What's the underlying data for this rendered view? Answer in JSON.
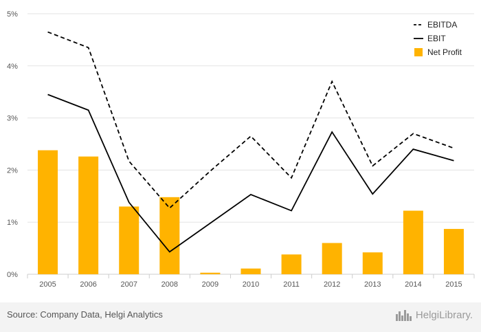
{
  "chart_data": {
    "type": "bar",
    "categories": [
      "2005",
      "2006",
      "2007",
      "2008",
      "2009",
      "2010",
      "2011",
      "2012",
      "2013",
      "2014",
      "2015"
    ],
    "series": [
      {
        "name": "EBITDA",
        "type": "line",
        "style": "dashed",
        "color": "#000000",
        "values": [
          4.65,
          4.35,
          2.17,
          1.27,
          1.98,
          2.65,
          1.85,
          3.7,
          2.08,
          2.7,
          2.42
        ]
      },
      {
        "name": "EBIT",
        "type": "line",
        "style": "solid",
        "color": "#000000",
        "values": [
          3.45,
          3.15,
          1.38,
          0.43,
          0.98,
          1.53,
          1.22,
          2.73,
          1.54,
          2.4,
          2.18
        ]
      },
      {
        "name": "Net Profit",
        "type": "bar",
        "color": "#ffb300",
        "values": [
          2.38,
          2.26,
          1.3,
          1.48,
          0.03,
          0.11,
          0.38,
          0.6,
          0.42,
          1.22,
          0.87
        ]
      }
    ],
    "y_ticks": [
      "0%",
      "1%",
      "2%",
      "3%",
      "4%",
      "5%"
    ],
    "ylim": [
      0,
      5
    ],
    "grid": true,
    "legend_position": "top-right"
  },
  "footer": {
    "source": "Source: Company Data, Helgi Analytics",
    "logo_text": "HelgiLibrary.",
    "logo_icon": "city-skyline-icon"
  }
}
